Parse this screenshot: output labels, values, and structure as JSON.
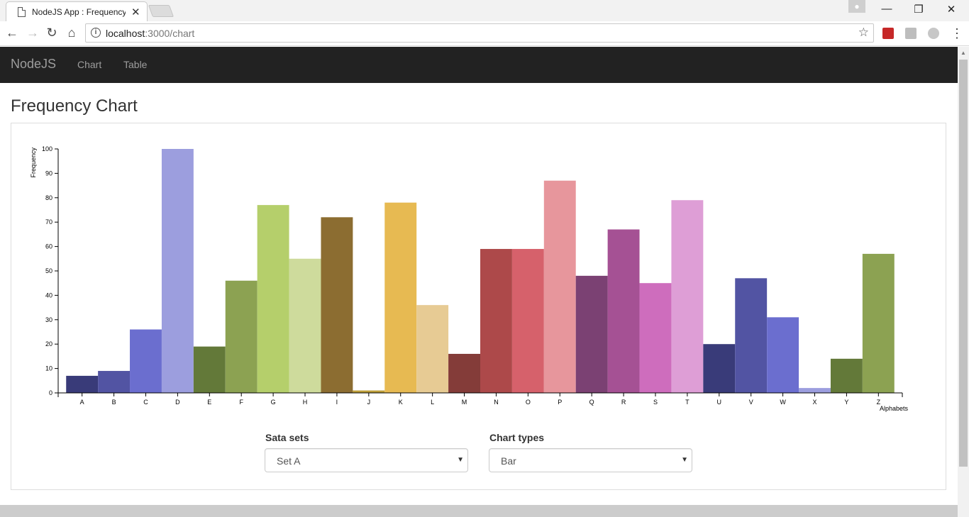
{
  "browser": {
    "tab_title": "NodeJS App : Frequency",
    "tab_close": "✕",
    "url_host": "localhost",
    "url_path": ":3000/chart",
    "info_symbol": "i",
    "star_symbol": "☆",
    "win_minimize": "—",
    "win_restore": "❐",
    "win_close": "✕",
    "back_symbol": "←",
    "forward_symbol": "→",
    "reload_symbol": "↻",
    "home_symbol": "⌂",
    "menu_symbol": "⋮"
  },
  "navbar": {
    "brand": "NodeJS",
    "links": [
      "Chart",
      "Table"
    ]
  },
  "page": {
    "title": "Frequency Chart"
  },
  "controls": {
    "datasets_label": "Sata sets",
    "datasets_value": "Set A",
    "chart_types_label": "Chart types",
    "chart_types_value": "Bar",
    "caret": "▼"
  },
  "chart_data": {
    "type": "bar",
    "xlabel": "Alphabets",
    "ylabel": "Frequency",
    "ylim": [
      0,
      100
    ],
    "yticks": [
      0,
      10,
      20,
      30,
      40,
      50,
      60,
      70,
      80,
      90,
      100
    ],
    "categories": [
      "A",
      "B",
      "C",
      "D",
      "E",
      "F",
      "G",
      "H",
      "I",
      "J",
      "K",
      "L",
      "M",
      "N",
      "O",
      "P",
      "Q",
      "R",
      "S",
      "T",
      "U",
      "V",
      "W",
      "X",
      "Y",
      "Z"
    ],
    "values": [
      7,
      9,
      26,
      100,
      19,
      46,
      77,
      55,
      72,
      1,
      78,
      36,
      16,
      59,
      59,
      87,
      48,
      67,
      45,
      79,
      20,
      47,
      31,
      2,
      14,
      57
    ],
    "colors": [
      "#393b79",
      "#5254a3",
      "#6b6ecf",
      "#9c9ede",
      "#637939",
      "#8ca252",
      "#b5cf6b",
      "#cedb9c",
      "#8c6d31",
      "#bd9e39",
      "#e7ba52",
      "#e7cb94",
      "#843c39",
      "#ad494a",
      "#d6616b",
      "#e7969c",
      "#7b4173",
      "#a55194",
      "#ce6dbd",
      "#de9ed6",
      "#393b79",
      "#5254a3",
      "#6b6ecf",
      "#9c9ede",
      "#637939",
      "#8ca252"
    ]
  }
}
